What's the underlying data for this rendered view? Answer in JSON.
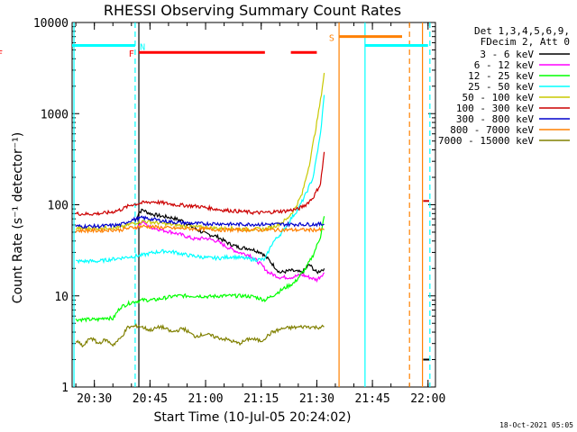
{
  "chart_data": {
    "type": "line",
    "title": "RHESSI Observing Summary Count Rates",
    "xlabel": "Start Time (10-Jul-05 20:24:02)",
    "ylabel": "Count Rate (s⁻¹ detector⁻¹)",
    "footer": "18-Oct-2021 05:05",
    "y_scale": "log",
    "ylim": [
      1,
      10000
    ],
    "xlim_minutes": [
      "20:24",
      "22:02"
    ],
    "x_ticks": [
      "20:30",
      "20:45",
      "21:00",
      "21:15",
      "21:30",
      "21:45",
      "22:00"
    ],
    "y_ticks": [
      "1",
      "10",
      "100",
      "1000",
      "10000"
    ],
    "legend_header": [
      "Det 1,3,4,5,6,9,",
      "FDecim 2, Att 0"
    ],
    "grid": false,
    "legend_position": "right",
    "series": [
      {
        "name": "3 - 6 keV",
        "color": "#000000",
        "points": [
          [
            "20:41",
            65
          ],
          [
            "20:42",
            82
          ],
          [
            "20:43",
            88
          ],
          [
            "20:45",
            80
          ],
          [
            "20:48",
            75
          ],
          [
            "20:51",
            72
          ],
          [
            "20:54",
            66
          ],
          [
            "20:57",
            55
          ],
          [
            "21:00",
            48
          ],
          [
            "21:03",
            45
          ],
          [
            "21:06",
            38
          ],
          [
            "21:09",
            34
          ],
          [
            "21:12",
            33
          ],
          [
            "21:15",
            30
          ],
          [
            "21:17",
            25
          ],
          [
            "21:20",
            18
          ],
          [
            "21:23",
            19
          ],
          [
            "21:26",
            18
          ],
          [
            "21:28",
            22
          ],
          [
            "21:30",
            18
          ],
          [
            "21:32",
            20
          ]
        ]
      },
      {
        "name": "6 - 12 keV",
        "color": "#ff00ff",
        "points": [
          [
            "20:41",
            55
          ],
          [
            "20:43",
            65
          ],
          [
            "20:45",
            57
          ],
          [
            "20:48",
            53
          ],
          [
            "20:51",
            50
          ],
          [
            "20:54",
            46
          ],
          [
            "20:57",
            42
          ],
          [
            "21:00",
            43
          ],
          [
            "21:03",
            40
          ],
          [
            "21:06",
            34
          ],
          [
            "21:09",
            30
          ],
          [
            "21:12",
            28
          ],
          [
            "21:15",
            22
          ],
          [
            "21:17",
            18
          ],
          [
            "21:20",
            16
          ],
          [
            "21:23",
            16
          ],
          [
            "21:26",
            17
          ],
          [
            "21:28",
            16
          ],
          [
            "21:30",
            15
          ],
          [
            "21:32",
            18
          ]
        ]
      },
      {
        "name": "12 - 25 keV",
        "color": "#00ff00",
        "points": [
          [
            "20:25",
            5.5
          ],
          [
            "20:28",
            5.5
          ],
          [
            "20:31",
            5.5
          ],
          [
            "20:33",
            5.8
          ],
          [
            "20:35",
            5.6
          ],
          [
            "20:37",
            7.5
          ],
          [
            "20:40",
            8.5
          ],
          [
            "20:43",
            9
          ],
          [
            "20:46",
            9
          ],
          [
            "20:49",
            9.5
          ],
          [
            "20:52",
            10
          ],
          [
            "20:55",
            10
          ],
          [
            "20:58",
            10
          ],
          [
            "21:01",
            9.8
          ],
          [
            "21:04",
            10
          ],
          [
            "21:07",
            10
          ],
          [
            "21:10",
            10
          ],
          [
            "21:13",
            9.8
          ],
          [
            "21:16",
            9
          ],
          [
            "21:18",
            10
          ],
          [
            "21:21",
            12
          ],
          [
            "21:24",
            14
          ],
          [
            "21:27",
            20
          ],
          [
            "21:29",
            28
          ],
          [
            "21:31",
            45
          ],
          [
            "21:32",
            75
          ]
        ]
      },
      {
        "name": "25 - 50 keV",
        "color": "#00ffff",
        "points": [
          [
            "20:25",
            24
          ],
          [
            "20:28",
            24
          ],
          [
            "20:31",
            24
          ],
          [
            "20:34",
            25
          ],
          [
            "20:37",
            26
          ],
          [
            "20:40",
            27
          ],
          [
            "20:43",
            28
          ],
          [
            "20:46",
            30
          ],
          [
            "20:49",
            31
          ],
          [
            "20:52",
            30
          ],
          [
            "20:55",
            28
          ],
          [
            "20:58",
            27
          ],
          [
            "21:01",
            26
          ],
          [
            "21:04",
            26
          ],
          [
            "21:07",
            27
          ],
          [
            "21:10",
            26
          ],
          [
            "21:13",
            25
          ],
          [
            "21:16",
            25
          ],
          [
            "21:18",
            38
          ],
          [
            "21:21",
            52
          ],
          [
            "21:23",
            70
          ],
          [
            "21:25",
            90
          ],
          [
            "21:27",
            130
          ],
          [
            "21:29",
            200
          ],
          [
            "21:31",
            600
          ],
          [
            "21:32",
            1600
          ]
        ]
      },
      {
        "name": "50 - 100 keV",
        "color": "#c8c800",
        "points": [
          [
            "20:25",
            55
          ],
          [
            "20:28",
            55
          ],
          [
            "20:31",
            55
          ],
          [
            "20:34",
            56
          ],
          [
            "20:37",
            56
          ],
          [
            "20:40",
            62
          ],
          [
            "20:43",
            66
          ],
          [
            "20:46",
            64
          ],
          [
            "20:49",
            62
          ],
          [
            "20:52",
            60
          ],
          [
            "20:55",
            58
          ],
          [
            "20:58",
            57
          ],
          [
            "21:01",
            56
          ],
          [
            "21:04",
            55
          ],
          [
            "21:07",
            55
          ],
          [
            "21:10",
            54
          ],
          [
            "21:13",
            54
          ],
          [
            "21:16",
            54
          ],
          [
            "21:18",
            57
          ],
          [
            "21:20",
            62
          ],
          [
            "21:22",
            70
          ],
          [
            "21:24",
            90
          ],
          [
            "21:26",
            130
          ],
          [
            "21:28",
            280
          ],
          [
            "21:30",
            800
          ],
          [
            "21:31",
            1400
          ],
          [
            "21:32",
            2800
          ]
        ]
      },
      {
        "name": "100 - 300 keV",
        "color": "#cc0000",
        "points": [
          [
            "20:25",
            80
          ],
          [
            "20:28",
            79
          ],
          [
            "20:31",
            80
          ],
          [
            "20:34",
            82
          ],
          [
            "20:37",
            88
          ],
          [
            "20:40",
            100
          ],
          [
            "20:43",
            105
          ],
          [
            "20:46",
            108
          ],
          [
            "20:49",
            104
          ],
          [
            "20:52",
            100
          ],
          [
            "20:55",
            98
          ],
          [
            "20:58",
            96
          ],
          [
            "21:01",
            92
          ],
          [
            "21:04",
            88
          ],
          [
            "21:07",
            86
          ],
          [
            "21:10",
            84
          ],
          [
            "21:13",
            82
          ],
          [
            "21:16",
            82
          ],
          [
            "21:19",
            84
          ],
          [
            "21:22",
            86
          ],
          [
            "21:25",
            90
          ],
          [
            "21:27",
            100
          ],
          [
            "21:29",
            120
          ],
          [
            "21:31",
            170
          ],
          [
            "21:32",
            380
          ]
        ]
      },
      {
        "name": "300 - 800 keV",
        "color": "#0000cc",
        "points": [
          [
            "20:25",
            58
          ],
          [
            "20:28",
            58
          ],
          [
            "20:31",
            58
          ],
          [
            "20:34",
            59
          ],
          [
            "20:37",
            60
          ],
          [
            "20:40",
            68
          ],
          [
            "20:43",
            72
          ],
          [
            "20:46",
            69
          ],
          [
            "20:49",
            66
          ],
          [
            "20:52",
            64
          ],
          [
            "20:55",
            63
          ],
          [
            "20:58",
            62
          ],
          [
            "21:01",
            62
          ],
          [
            "21:04",
            62
          ],
          [
            "21:07",
            61
          ],
          [
            "21:10",
            61
          ],
          [
            "21:13",
            61
          ],
          [
            "21:16",
            61
          ],
          [
            "21:19",
            61
          ],
          [
            "21:22",
            61
          ],
          [
            "21:25",
            61
          ],
          [
            "21:28",
            61
          ],
          [
            "21:30",
            61
          ],
          [
            "21:32",
            61
          ]
        ]
      },
      {
        "name": "800 - 7000 keV",
        "color": "#ff8000",
        "points": [
          [
            "20:25",
            52
          ],
          [
            "20:28",
            52
          ],
          [
            "20:31",
            52
          ],
          [
            "20:34",
            53
          ],
          [
            "20:37",
            53
          ],
          [
            "20:40",
            56
          ],
          [
            "20:43",
            58
          ],
          [
            "20:46",
            57
          ],
          [
            "20:49",
            56
          ],
          [
            "20:52",
            55
          ],
          [
            "20:55",
            55
          ],
          [
            "20:58",
            54
          ],
          [
            "21:01",
            54
          ],
          [
            "21:04",
            53
          ],
          [
            "21:07",
            53
          ],
          [
            "21:10",
            53
          ],
          [
            "21:13",
            53
          ],
          [
            "21:16",
            53
          ],
          [
            "21:19",
            53
          ],
          [
            "21:22",
            53
          ],
          [
            "21:25",
            53
          ],
          [
            "21:28",
            53
          ],
          [
            "21:30",
            53
          ],
          [
            "21:32",
            53
          ]
        ]
      },
      {
        "name": "7000 - 15000 keV",
        "color": "#808000",
        "points": [
          [
            "20:25",
            3.2
          ],
          [
            "20:27",
            2.8
          ],
          [
            "20:29",
            3.5
          ],
          [
            "20:31",
            3.0
          ],
          [
            "20:33",
            3.3
          ],
          [
            "20:35",
            2.9
          ],
          [
            "20:37",
            3.4
          ],
          [
            "20:39",
            4.5
          ],
          [
            "20:42",
            4.7
          ],
          [
            "20:45",
            4.2
          ],
          [
            "20:48",
            4.6
          ],
          [
            "20:51",
            4.0
          ],
          [
            "20:54",
            4.4
          ],
          [
            "20:57",
            3.6
          ],
          [
            "21:00",
            3.8
          ],
          [
            "21:03",
            3.5
          ],
          [
            "21:06",
            3.3
          ],
          [
            "21:09",
            3.0
          ],
          [
            "21:12",
            3.4
          ],
          [
            "21:15",
            3.2
          ],
          [
            "21:18",
            4.0
          ],
          [
            "21:21",
            4.4
          ],
          [
            "21:24",
            4.5
          ],
          [
            "21:27",
            4.6
          ],
          [
            "21:30",
            4.5
          ],
          [
            "21:32",
            4.6
          ]
        ]
      }
    ],
    "post_gap_series": [
      {
        "name": "3 - 6 keV",
        "values_at_21:59": 2
      },
      {
        "name": "100 - 300 keV",
        "values_at_21:59": 110
      }
    ],
    "flags": [
      {
        "label": "N",
        "color": "#00ffff",
        "type": "bar",
        "value": 5600,
        "start": "20:24",
        "end": "20:41",
        "label_at": "20:43"
      },
      {
        "label": "F",
        "color": "#ff0000",
        "type": "bar",
        "value": 4700,
        "start": "20:42",
        "end": "21:16",
        "label_at": "20:40"
      },
      {
        "label": "F",
        "color": "#ff0000",
        "type": "bar",
        "value": 4700,
        "start": "21:23",
        "end": "21:30"
      },
      {
        "label": "S",
        "color": "#ff8000",
        "type": "bar",
        "value": 7000,
        "start": "21:36",
        "end": "21:53",
        "label_at": "21:34"
      },
      {
        "label": "",
        "color": "#00ffff",
        "type": "bar",
        "value": 5600,
        "start": "21:43",
        "end": "22:00"
      }
    ],
    "vertical_markers": [
      {
        "time": "20:24.5",
        "color": "#00ffff",
        "style": "solid"
      },
      {
        "time": "20:41",
        "color": "#00ffff",
        "style": "dashed"
      },
      {
        "time": "20:42",
        "color": "#000000",
        "style": "solid"
      },
      {
        "time": "21:36",
        "color": "#ff8000",
        "style": "solid"
      },
      {
        "time": "21:43",
        "color": "#00ffff",
        "style": "solid"
      },
      {
        "time": "21:55",
        "color": "#ff8000",
        "style": "dashed"
      },
      {
        "time": "21:58.5",
        "color": "#ff8000",
        "style": "solid"
      },
      {
        "time": "22:00.5",
        "color": "#00ffff",
        "style": "dashed"
      }
    ]
  }
}
